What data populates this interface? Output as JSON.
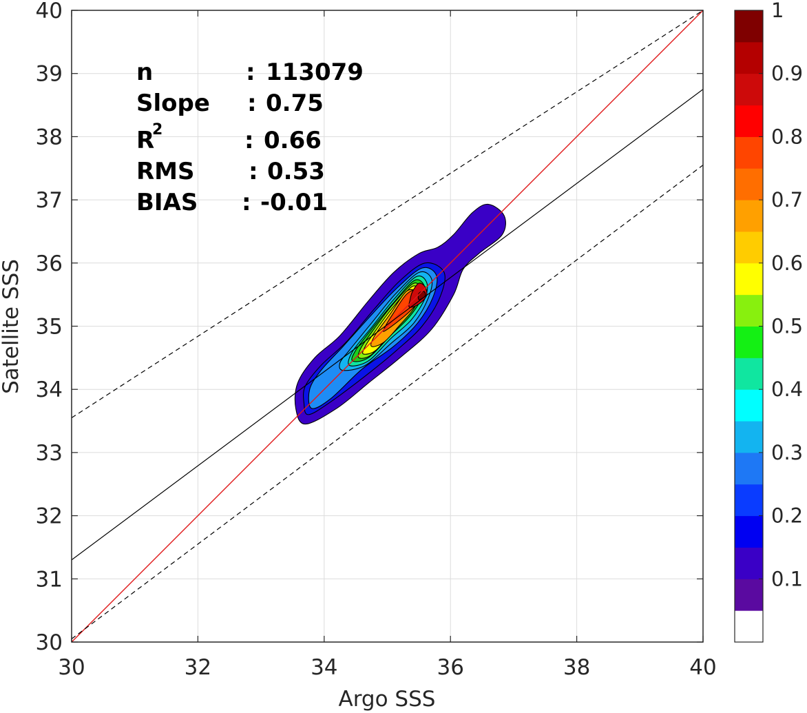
{
  "chart_data": {
    "type": "heatmap",
    "subtype": "2D density contour (filled) with regression lines",
    "xlabel": "Argo SSS",
    "ylabel": "Satellite SSS",
    "xlim": [
      30,
      40
    ],
    "ylim": [
      30,
      40
    ],
    "xticks": [
      30,
      32,
      34,
      36,
      38,
      40
    ],
    "yticks": [
      30,
      31,
      32,
      33,
      34,
      35,
      36,
      37,
      38,
      39,
      40
    ],
    "grid": true,
    "stats": [
      {
        "label": "n",
        "sep": ":",
        "value": "113079"
      },
      {
        "label": "Slope",
        "sep": ":",
        "value": "0.75"
      },
      {
        "label": "R",
        "sup": "2",
        "sep": ":",
        "value": "0.66"
      },
      {
        "label": "RMS",
        "sep": ":",
        "value": "0.53"
      },
      {
        "label": "BIAS",
        "sep": ":",
        "value": "-0.01"
      }
    ],
    "lines": [
      {
        "role": "identity",
        "color": "#e0191b",
        "dash": "solid",
        "from": [
          30,
          30
        ],
        "to": [
          40,
          40
        ]
      },
      {
        "role": "fit",
        "color": "#000000",
        "dash": "solid",
        "from": [
          30,
          31.3
        ],
        "to": [
          40,
          38.75
        ]
      },
      {
        "role": "upper-bound",
        "color": "#000000",
        "dash": "dashed",
        "from": [
          30,
          33.55
        ],
        "to": [
          40,
          40
        ]
      },
      {
        "role": "lower-bound",
        "color": "#000000",
        "dash": "dashed",
        "from": [
          30,
          30.05
        ],
        "to": [
          40,
          37.55
        ]
      }
    ],
    "density_peak": {
      "x": 35.55,
      "y": 35.45
    },
    "density_levels": [
      {
        "level": 0.05,
        "color": "#3a00c6",
        "polygon": [
          [
            33.7,
            33.45
          ],
          [
            34.2,
            33.7
          ],
          [
            34.7,
            34.1
          ],
          [
            35.2,
            34.5
          ],
          [
            35.7,
            34.95
          ],
          [
            36.05,
            35.5
          ],
          [
            36.2,
            35.9
          ],
          [
            36.45,
            36.15
          ],
          [
            36.82,
            36.45
          ],
          [
            36.85,
            36.75
          ],
          [
            36.6,
            36.93
          ],
          [
            36.35,
            36.8
          ],
          [
            36.05,
            36.45
          ],
          [
            35.8,
            36.25
          ],
          [
            35.5,
            36.15
          ],
          [
            35.1,
            35.85
          ],
          [
            34.7,
            35.4
          ],
          [
            34.25,
            34.85
          ],
          [
            33.85,
            34.5
          ],
          [
            33.58,
            34.1
          ],
          [
            33.55,
            33.7
          ]
        ]
      },
      {
        "level": 0.15,
        "color": "#0a13e6",
        "polygon": [
          [
            33.75,
            33.6
          ],
          [
            34.1,
            33.8
          ],
          [
            34.7,
            34.25
          ],
          [
            35.15,
            34.62
          ],
          [
            35.55,
            35.0
          ],
          [
            35.83,
            35.45
          ],
          [
            35.9,
            35.85
          ],
          [
            35.6,
            36.0
          ],
          [
            35.2,
            35.72
          ],
          [
            34.8,
            35.28
          ],
          [
            34.35,
            34.75
          ],
          [
            33.95,
            34.38
          ],
          [
            33.7,
            34.05
          ],
          [
            33.68,
            33.78
          ]
        ]
      },
      {
        "level": 0.3,
        "color": "#1e8cf5",
        "polygon": [
          [
            33.8,
            33.7
          ],
          [
            34.1,
            33.85
          ],
          [
            34.6,
            34.32
          ],
          [
            35.1,
            34.68
          ],
          [
            35.48,
            35.05
          ],
          [
            35.72,
            35.45
          ],
          [
            35.78,
            35.8
          ],
          [
            35.55,
            35.92
          ],
          [
            35.15,
            35.6
          ],
          [
            34.75,
            35.18
          ],
          [
            34.3,
            34.68
          ],
          [
            33.95,
            34.3
          ],
          [
            33.77,
            34.0
          ]
        ]
      },
      {
        "level": 0.35,
        "color": "#13b4f0",
        "polygon": [
          [
            34.3,
            34.3
          ],
          [
            34.65,
            34.38
          ],
          [
            35.05,
            34.72
          ],
          [
            35.42,
            35.05
          ],
          [
            35.65,
            35.45
          ],
          [
            35.7,
            35.75
          ],
          [
            35.5,
            35.85
          ],
          [
            35.12,
            35.5
          ],
          [
            34.75,
            35.05
          ],
          [
            34.4,
            34.62
          ],
          [
            34.25,
            34.42
          ]
        ]
      },
      {
        "level": 0.45,
        "color": "#10e6a0",
        "polygon": [
          [
            34.4,
            34.38
          ],
          [
            34.7,
            34.45
          ],
          [
            35.05,
            34.8
          ],
          [
            35.38,
            35.1
          ],
          [
            35.6,
            35.45
          ],
          [
            35.62,
            35.7
          ],
          [
            35.45,
            35.78
          ],
          [
            35.1,
            35.42
          ],
          [
            34.75,
            34.98
          ],
          [
            34.45,
            34.6
          ]
        ]
      },
      {
        "level": 0.5,
        "color": "#1ccf1c",
        "polygon": [
          [
            34.45,
            34.45
          ],
          [
            34.7,
            34.5
          ],
          [
            35.05,
            34.85
          ],
          [
            35.35,
            35.15
          ],
          [
            35.55,
            35.45
          ],
          [
            35.58,
            35.65
          ],
          [
            35.42,
            35.72
          ],
          [
            35.08,
            35.35
          ],
          [
            34.75,
            34.95
          ],
          [
            34.5,
            34.62
          ]
        ]
      },
      {
        "level": 0.55,
        "color": "#88f00e",
        "polygon": [
          [
            34.55,
            34.5
          ],
          [
            34.75,
            34.55
          ],
          [
            35.05,
            34.9
          ],
          [
            35.32,
            35.18
          ],
          [
            35.52,
            35.45
          ],
          [
            35.53,
            35.6
          ],
          [
            35.4,
            35.67
          ],
          [
            35.05,
            35.3
          ],
          [
            34.75,
            34.9
          ],
          [
            34.58,
            34.65
          ]
        ]
      },
      {
        "level": 0.6,
        "color": "#ffff00",
        "polygon": [
          [
            34.62,
            34.56
          ],
          [
            34.82,
            34.62
          ],
          [
            35.1,
            34.95
          ],
          [
            35.35,
            35.22
          ],
          [
            35.5,
            35.45
          ],
          [
            35.5,
            35.57
          ],
          [
            35.38,
            35.62
          ],
          [
            35.05,
            35.25
          ],
          [
            34.78,
            34.88
          ],
          [
            34.65,
            34.68
          ]
        ]
      },
      {
        "level": 0.7,
        "color": "#ffa000",
        "polygon": [
          [
            34.75,
            34.68
          ],
          [
            34.95,
            34.75
          ],
          [
            35.2,
            35.02
          ],
          [
            35.4,
            35.25
          ],
          [
            35.5,
            35.45
          ],
          [
            35.47,
            35.55
          ],
          [
            35.3,
            35.55
          ],
          [
            35.05,
            35.2
          ],
          [
            34.8,
            34.85
          ]
        ]
      },
      {
        "level": 0.8,
        "color": "#ff4500",
        "polygon": [
          [
            34.95,
            34.92
          ],
          [
            35.2,
            35.1
          ],
          [
            35.42,
            35.3
          ],
          [
            35.52,
            35.45
          ],
          [
            35.48,
            35.58
          ],
          [
            35.3,
            35.5
          ],
          [
            35.08,
            35.18
          ],
          [
            34.97,
            35.0
          ]
        ]
      },
      {
        "level": 0.9,
        "color": "#cd0a0a",
        "polygon": [
          [
            35.35,
            35.3
          ],
          [
            35.5,
            35.35
          ],
          [
            35.62,
            35.48
          ],
          [
            35.6,
            35.62
          ],
          [
            35.5,
            35.68
          ],
          [
            35.4,
            35.55
          ],
          [
            35.36,
            35.42
          ]
        ]
      },
      {
        "level": 1.0,
        "color": "#7f0000",
        "polygon": [
          [
            35.5,
            35.42
          ],
          [
            35.6,
            35.48
          ],
          [
            35.58,
            35.55
          ],
          [
            35.5,
            35.52
          ]
        ]
      }
    ],
    "colorbar": {
      "range": [
        0,
        1
      ],
      "ticks": [
        0.1,
        0.2,
        0.3,
        0.4,
        0.5,
        0.6,
        0.7,
        0.8,
        0.9,
        1
      ],
      "tick_labels": [
        "0.1",
        "0.2",
        "0.3",
        "0.4",
        "0.5",
        "0.6",
        "0.7",
        "0.8",
        "0.9",
        "1"
      ],
      "bands": [
        "#ffffff",
        "#5a0aa0",
        "#3a00c6",
        "#0000f2",
        "#0a3cff",
        "#1e78f5",
        "#13b4f0",
        "#00ffff",
        "#10e6a0",
        "#14f014",
        "#88f00e",
        "#ffff00",
        "#ffcc00",
        "#ffa000",
        "#ff6e00",
        "#ff4500",
        "#ff0000",
        "#cd0a0a",
        "#b40000",
        "#7f0000"
      ]
    }
  }
}
